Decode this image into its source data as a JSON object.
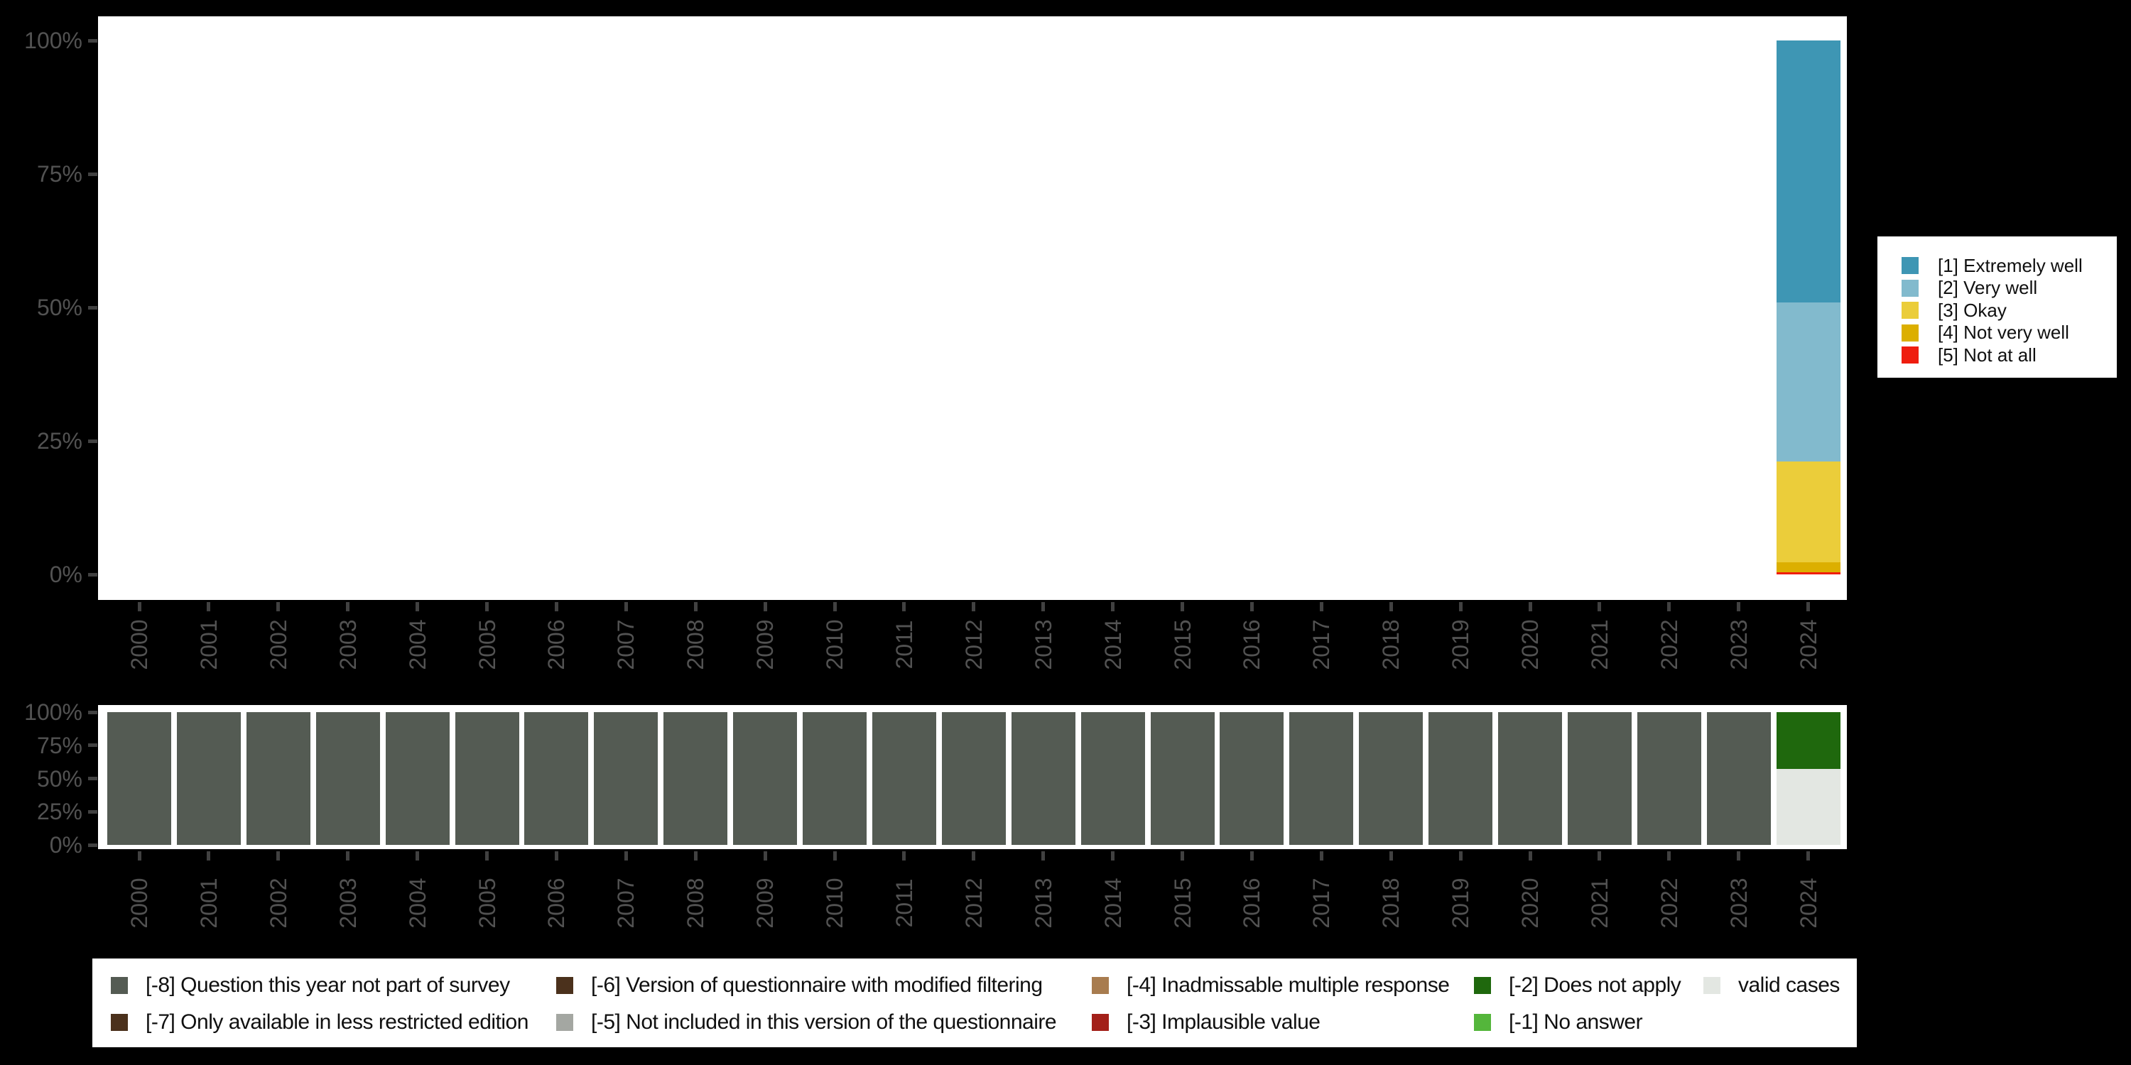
{
  "page": {
    "background": "#000000",
    "panel_background": "#ffffff",
    "axis_label_color": "#525252",
    "axis_tick_color": "#414141",
    "legend_text_color": "#101010"
  },
  "chart_data": [
    {
      "id": "answer-distribution",
      "type": "bar",
      "stacked": true,
      "grid": false,
      "legend_position": "right",
      "x_axis": {
        "tick_labels": [
          "2000",
          "2001",
          "2002",
          "2003",
          "2004",
          "2005",
          "2006",
          "2007",
          "2008",
          "2009",
          "2010",
          "2011",
          "2012",
          "2013",
          "2014",
          "2015",
          "2016",
          "2017",
          "2018",
          "2019",
          "2020",
          "2021",
          "2022",
          "2023",
          "2024"
        ],
        "label_angle": -90
      },
      "y_axis": {
        "tick_labels": [
          "100%",
          "75%",
          "50%",
          "25%",
          "0%"
        ],
        "range": [
          0,
          100
        ],
        "unit": "percent"
      },
      "series": [
        {
          "name": "[1] Extremely well",
          "color": "#3E96B4",
          "values": [
            0,
            0,
            0,
            0,
            0,
            0,
            0,
            0,
            0,
            0,
            0,
            0,
            0,
            0,
            0,
            0,
            0,
            0,
            0,
            0,
            0,
            0,
            0,
            0,
            49.1
          ]
        },
        {
          "name": "[2] Very well",
          "color": "#82BACD",
          "values": [
            0,
            0,
            0,
            0,
            0,
            0,
            0,
            0,
            0,
            0,
            0,
            0,
            0,
            0,
            0,
            0,
            0,
            0,
            0,
            0,
            0,
            0,
            0,
            0,
            29.7
          ]
        },
        {
          "name": "[3] Okay",
          "color": "#EBCD3A",
          "values": [
            0,
            0,
            0,
            0,
            0,
            0,
            0,
            0,
            0,
            0,
            0,
            0,
            0,
            0,
            0,
            0,
            0,
            0,
            0,
            0,
            0,
            0,
            0,
            0,
            18.9
          ]
        },
        {
          "name": "[4] Not very well",
          "color": "#DCAF00",
          "values": [
            0,
            0,
            0,
            0,
            0,
            0,
            0,
            0,
            0,
            0,
            0,
            0,
            0,
            0,
            0,
            0,
            0,
            0,
            0,
            0,
            0,
            0,
            0,
            0,
            1.9
          ]
        },
        {
          "name": "[5] Not at all",
          "color": "#EF1D0E",
          "values": [
            0,
            0,
            0,
            0,
            0,
            0,
            0,
            0,
            0,
            0,
            0,
            0,
            0,
            0,
            0,
            0,
            0,
            0,
            0,
            0,
            0,
            0,
            0,
            0,
            0.4
          ]
        }
      ]
    },
    {
      "id": "missing-values",
      "type": "bar",
      "stacked": true,
      "grid": false,
      "legend_position": "bottom",
      "x_axis": {
        "tick_labels": [
          "2000",
          "2001",
          "2002",
          "2003",
          "2004",
          "2005",
          "2006",
          "2007",
          "2008",
          "2009",
          "2010",
          "2011",
          "2012",
          "2013",
          "2014",
          "2015",
          "2016",
          "2017",
          "2018",
          "2019",
          "2020",
          "2021",
          "2022",
          "2023",
          "2024"
        ],
        "label_angle": -90
      },
      "y_axis": {
        "tick_labels": [
          "100%",
          "75%",
          "50%",
          "25%",
          "0%"
        ],
        "range": [
          0,
          100
        ],
        "unit": "percent"
      },
      "series": [
        {
          "name": "[-8] Question this year not part of survey",
          "color": "#545B53",
          "values": [
            100,
            100,
            100,
            100,
            100,
            100,
            100,
            100,
            100,
            100,
            100,
            100,
            100,
            100,
            100,
            100,
            100,
            100,
            100,
            100,
            100,
            100,
            100,
            100,
            0
          ]
        },
        {
          "name": "[-7] Only available in less restricted edition",
          "color": "#4B311C",
          "values": [
            0,
            0,
            0,
            0,
            0,
            0,
            0,
            0,
            0,
            0,
            0,
            0,
            0,
            0,
            0,
            0,
            0,
            0,
            0,
            0,
            0,
            0,
            0,
            0,
            0
          ]
        },
        {
          "name": "[-6] Version of questionnaire with modified filtering",
          "color": "#4B311C",
          "values": [
            0,
            0,
            0,
            0,
            0,
            0,
            0,
            0,
            0,
            0,
            0,
            0,
            0,
            0,
            0,
            0,
            0,
            0,
            0,
            0,
            0,
            0,
            0,
            0,
            0
          ]
        },
        {
          "name": "[-5] Not included in this version of the questionnaire",
          "color": "#A4A7A2",
          "values": [
            0,
            0,
            0,
            0,
            0,
            0,
            0,
            0,
            0,
            0,
            0,
            0,
            0,
            0,
            0,
            0,
            0,
            0,
            0,
            0,
            0,
            0,
            0,
            0,
            0
          ]
        },
        {
          "name": "[-4] Inadmissable multiple response",
          "color": "#A87C4F",
          "values": [
            0,
            0,
            0,
            0,
            0,
            0,
            0,
            0,
            0,
            0,
            0,
            0,
            0,
            0,
            0,
            0,
            0,
            0,
            0,
            0,
            0,
            0,
            0,
            0,
            0
          ]
        },
        {
          "name": "[-3] Implausible value",
          "color": "#A32019",
          "values": [
            0,
            0,
            0,
            0,
            0,
            0,
            0,
            0,
            0,
            0,
            0,
            0,
            0,
            0,
            0,
            0,
            0,
            0,
            0,
            0,
            0,
            0,
            0,
            0,
            0
          ]
        },
        {
          "name": "[-2] Does not apply",
          "color": "#1F680D",
          "values": [
            0,
            0,
            0,
            0,
            0,
            0,
            0,
            0,
            0,
            0,
            0,
            0,
            0,
            0,
            0,
            0,
            0,
            0,
            0,
            0,
            0,
            0,
            0,
            0,
            43
          ]
        },
        {
          "name": "[-1] No answer",
          "color": "#54B63B",
          "values": [
            0,
            0,
            0,
            0,
            0,
            0,
            0,
            0,
            0,
            0,
            0,
            0,
            0,
            0,
            0,
            0,
            0,
            0,
            0,
            0,
            0,
            0,
            0,
            0,
            0
          ]
        },
        {
          "name": "valid cases",
          "color": "#E3E7E2",
          "values": [
            0,
            0,
            0,
            0,
            0,
            0,
            0,
            0,
            0,
            0,
            0,
            0,
            0,
            0,
            0,
            0,
            0,
            0,
            0,
            0,
            0,
            0,
            0,
            0,
            57
          ]
        }
      ]
    }
  ]
}
